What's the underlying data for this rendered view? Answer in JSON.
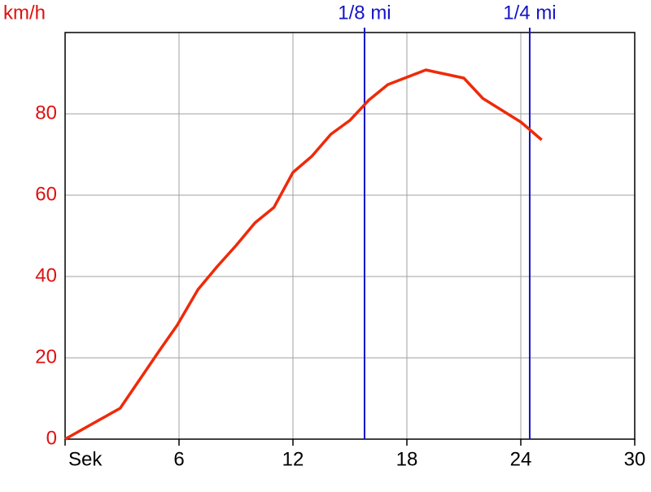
{
  "chart_data": {
    "type": "line",
    "y_label": "km/h",
    "x": [
      0,
      2.9,
      5,
      5.9,
      7,
      8,
      9,
      10,
      11,
      12,
      13,
      14,
      15,
      16,
      17,
      19,
      21,
      22,
      24,
      25.1
    ],
    "series": [
      {
        "name": "km/h",
        "color": "#ee2a0a",
        "values": [
          0,
          7.6,
          22,
          28,
          36.8,
          42.4,
          47.6,
          53.2,
          57,
          65.6,
          69.6,
          75,
          78.4,
          83.4,
          87.2,
          90.8,
          88.8,
          83.8,
          78,
          73.6
        ]
      }
    ],
    "xlim": [
      0,
      30
    ],
    "ylim": [
      0,
      100
    ],
    "xticks": [
      {
        "value": 0,
        "label": "Sek"
      },
      6,
      12,
      18,
      24,
      30
    ],
    "yticks": [
      0,
      20,
      40,
      60,
      80
    ],
    "grid": true,
    "markers": [
      {
        "x": 15.77,
        "label": "1/8 mi",
        "color": "#1414c8"
      },
      {
        "x": 24.47,
        "label": "1/4 mi",
        "color": "#1414c8"
      }
    ]
  }
}
